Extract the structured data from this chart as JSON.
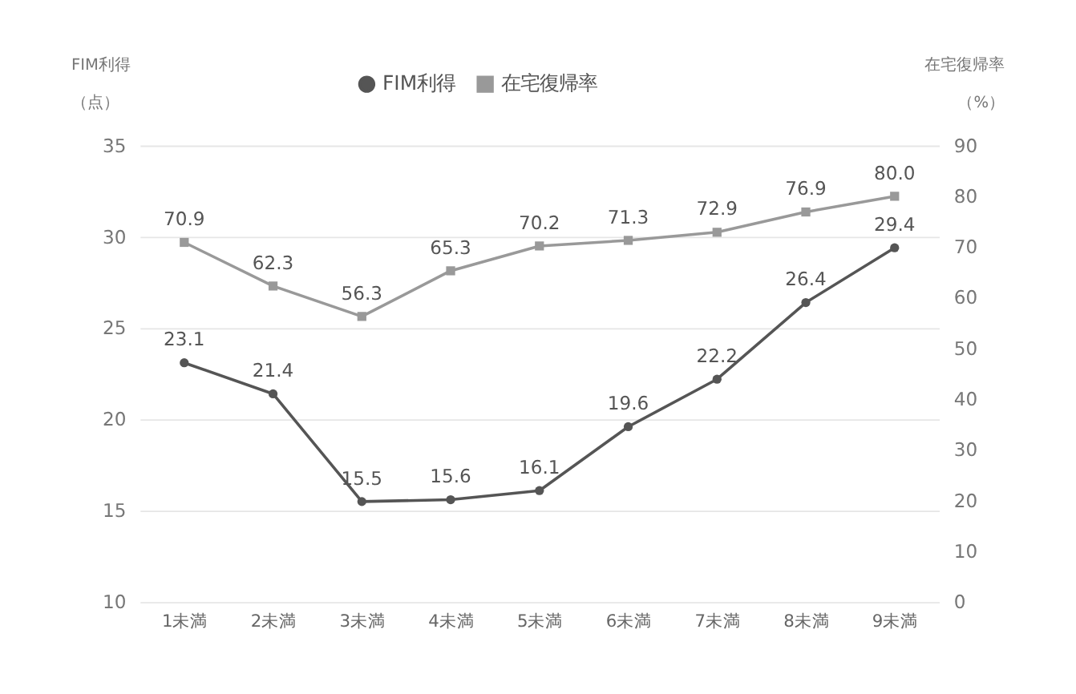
{
  "chart_data": {
    "type": "line",
    "ylabel": "FIM利得（点）",
    "y2label": "在宅復帰率（%）",
    "categories": [
      "1未満",
      "2未満",
      "3未満",
      "4未満",
      "5未満",
      "6未満",
      "7未満",
      "8未満",
      "9未満"
    ],
    "series": [
      {
        "name": "FIM利得",
        "color": "#555555",
        "marker": "circle",
        "values": [
          23.1,
          21.4,
          15.5,
          15.6,
          16.1,
          19.6,
          22.2,
          26.4,
          29.4
        ],
        "value_labels": [
          "23.1",
          "21.4",
          "15.5",
          "15.6",
          "16.1",
          "19.6",
          "22.2",
          "26.4",
          "29.4"
        ]
      },
      {
        "name": "在宅復帰率",
        "color": "#999999",
        "marker": "square",
        "axis": "y2",
        "values": [
          70.9,
          62.3,
          56.3,
          65.3,
          70.2,
          71.3,
          72.9,
          76.9,
          80.0
        ],
        "value_labels": [
          "70.9",
          "62.3",
          "56.3",
          "65.3",
          "70.2",
          "71.3",
          "72.9",
          "76.9",
          "80.0"
        ]
      }
    ],
    "ylim": [
      10,
      35
    ],
    "yticks": [
      10,
      15,
      20,
      25,
      30,
      35
    ],
    "y2lim": [
      0,
      90
    ],
    "y2ticks": [
      0,
      10,
      20,
      30,
      40,
      50,
      60,
      70,
      80,
      90
    ],
    "grid": "y",
    "legend": "top",
    "line_style": "solid"
  }
}
